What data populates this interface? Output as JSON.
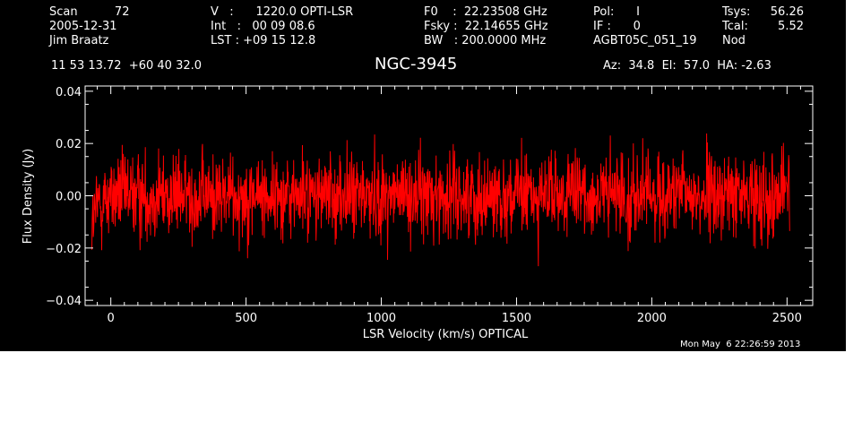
{
  "header": {
    "col1": [
      "Scan          72",
      "2005-12-31",
      "Jim Braatz"
    ],
    "col2": [
      "V   :      1220.0 OPTI-LSR",
      "Int   :   00 09 08.6",
      "LST : +09 15 12.8"
    ],
    "col3": [
      "F0    :  22.23508 GHz",
      "Fsky :  22.14655 GHz",
      "BW   : 200.0000 MHz"
    ],
    "col4": [
      "Pol:      I",
      "IF :      0",
      "AGBT05C_051_19"
    ],
    "col5": [
      "Tsys:",
      "Tcal:",
      "Nod"
    ],
    "col6": [
      "56.26",
      "5.52",
      ""
    ],
    "coords": "11 53 13.72  +60 40 32.0",
    "object": "NGC-3945",
    "azel": "Az:  34.8  El:  57.0  HA: -2.63",
    "timestamp": "Mon May  6 22:26:59 2013"
  },
  "chart_data": {
    "type": "line",
    "xlabel": "LSR Velocity (km/s) OPTICAL",
    "ylabel": "Flux Density (Jy)",
    "xlim": [
      -95,
      2595
    ],
    "ylim": [
      -0.042,
      0.042
    ],
    "x_ticks": [
      0,
      500,
      1000,
      1500,
      2000,
      2500
    ],
    "x_tick_labels": [
      "0",
      "500",
      "1000",
      "1500",
      "2000",
      "2500"
    ],
    "y_ticks": [
      -0.04,
      -0.02,
      0.0,
      0.02,
      0.04
    ],
    "y_tick_labels": [
      "−0.04",
      "−0.02",
      "0.00",
      "0.02",
      "0.04"
    ],
    "series": [
      {
        "color": "#ff0000",
        "x": [
          -70,
          -50,
          -30,
          0,
          100,
          200,
          300,
          400,
          500,
          600,
          700,
          800,
          900,
          1000,
          1100,
          1200,
          1300,
          1400,
          1500,
          1600,
          1700,
          1800,
          1900,
          2000,
          2100,
          2200,
          2300,
          2400,
          2480,
          2510
        ],
        "y": [
          -0.012,
          -0.004,
          -0.002,
          0.0,
          0.0,
          0.0,
          0.0,
          0.0,
          0.0,
          0.0,
          0.0,
          0.0,
          0.0,
          0.0,
          0.0,
          0.0,
          0.0,
          0.0,
          0.0,
          0.0,
          0.0,
          0.0,
          0.0,
          0.0,
          0.0,
          0.0,
          0.0,
          0.0,
          0.002,
          0.004
        ],
        "noise_rms": 0.008
      }
    ]
  }
}
